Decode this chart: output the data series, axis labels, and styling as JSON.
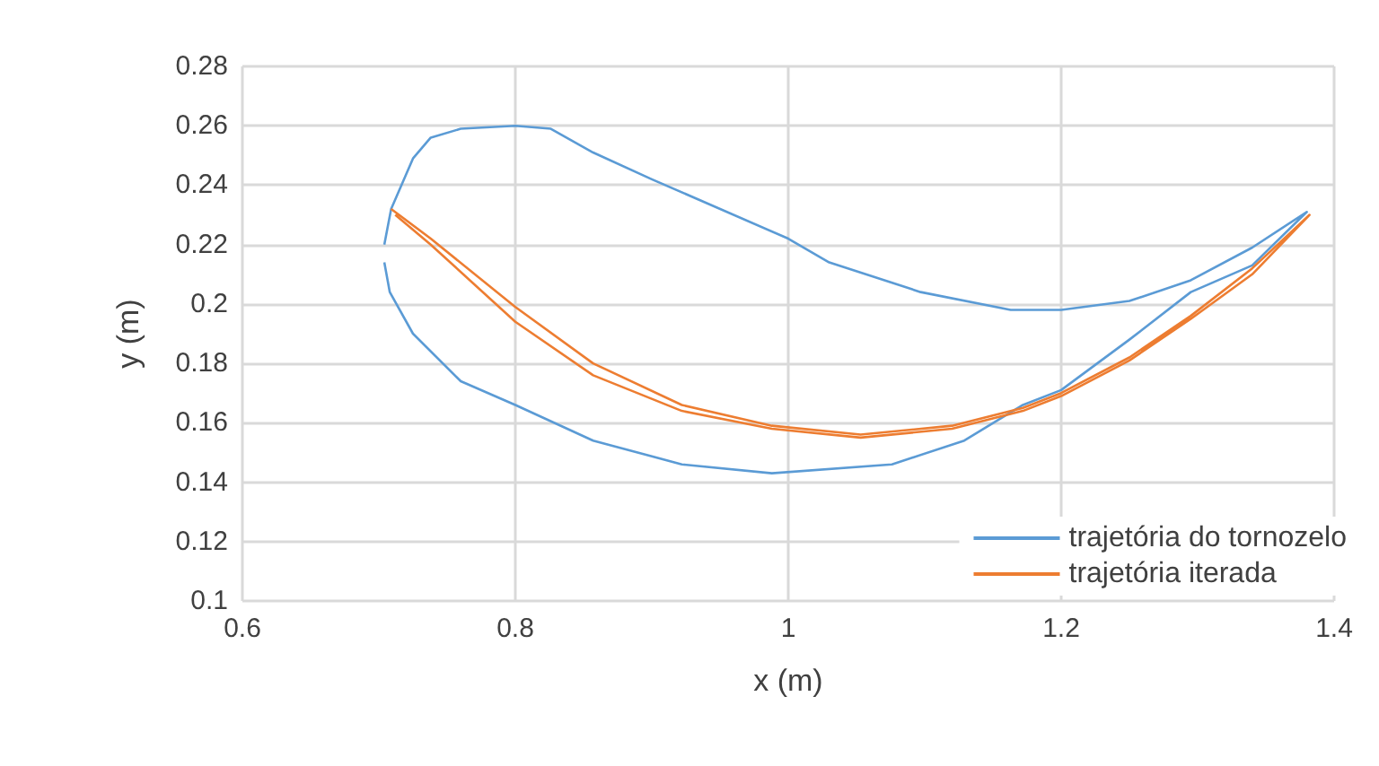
{
  "chart_data": {
    "type": "line",
    "xlabel": "x (m)",
    "ylabel": "y (m)",
    "xlim": [
      0.6,
      1.4
    ],
    "xticks": [
      0.6,
      0.8,
      1,
      1.2,
      1.4
    ],
    "ylim": [
      0.1,
      0.28
    ],
    "yticks": [
      0.1,
      0.12,
      0.14,
      0.16,
      0.18,
      0.2,
      0.22,
      0.24,
      0.26,
      0.28
    ],
    "grid": true,
    "legend": "bottom right",
    "marker": "none",
    "line_style": "solid",
    "series": [
      {
        "name": "trajetória do tornozelo",
        "color": "#5b9bd5",
        "x": [
          0.704,
          0.709,
          0.725,
          0.738,
          0.76,
          0.8,
          0.826,
          0.857,
          0.9,
          1.0,
          1.03,
          1.097,
          1.163,
          1.2,
          1.25,
          1.295,
          1.34,
          1.38,
          1.34,
          1.295,
          1.25,
          1.2,
          1.172,
          1.129,
          1.076,
          0.988,
          0.922,
          0.857,
          0.8,
          0.76,
          0.725,
          0.708,
          0.704
        ],
        "values": [
          0.22,
          0.232,
          0.249,
          0.256,
          0.259,
          0.26,
          0.259,
          0.251,
          0.242,
          0.222,
          0.214,
          0.204,
          0.198,
          0.198,
          0.201,
          0.208,
          0.219,
          0.231,
          0.213,
          0.204,
          0.188,
          0.171,
          0.166,
          0.154,
          0.146,
          0.143,
          0.146,
          0.154,
          0.166,
          0.174,
          0.19,
          0.204,
          0.214
        ]
      },
      {
        "name": "trajetória iterada",
        "color": "#ed7d31",
        "x": [
          0.709,
          0.738,
          0.8,
          0.857,
          0.922,
          0.988,
          1.053,
          1.12,
          1.172,
          1.2,
          1.25,
          1.295,
          1.34,
          1.382,
          1.34,
          1.295,
          1.25,
          1.2,
          1.172,
          1.12,
          1.053,
          0.988,
          0.922,
          0.857,
          0.8,
          0.738,
          0.712
        ],
        "values": [
          0.232,
          0.222,
          0.199,
          0.18,
          0.166,
          0.159,
          0.156,
          0.159,
          0.165,
          0.17,
          0.182,
          0.196,
          0.212,
          0.23,
          0.21,
          0.195,
          0.181,
          0.169,
          0.164,
          0.158,
          0.155,
          0.158,
          0.164,
          0.176,
          0.194,
          0.22,
          0.23
        ]
      }
    ]
  }
}
